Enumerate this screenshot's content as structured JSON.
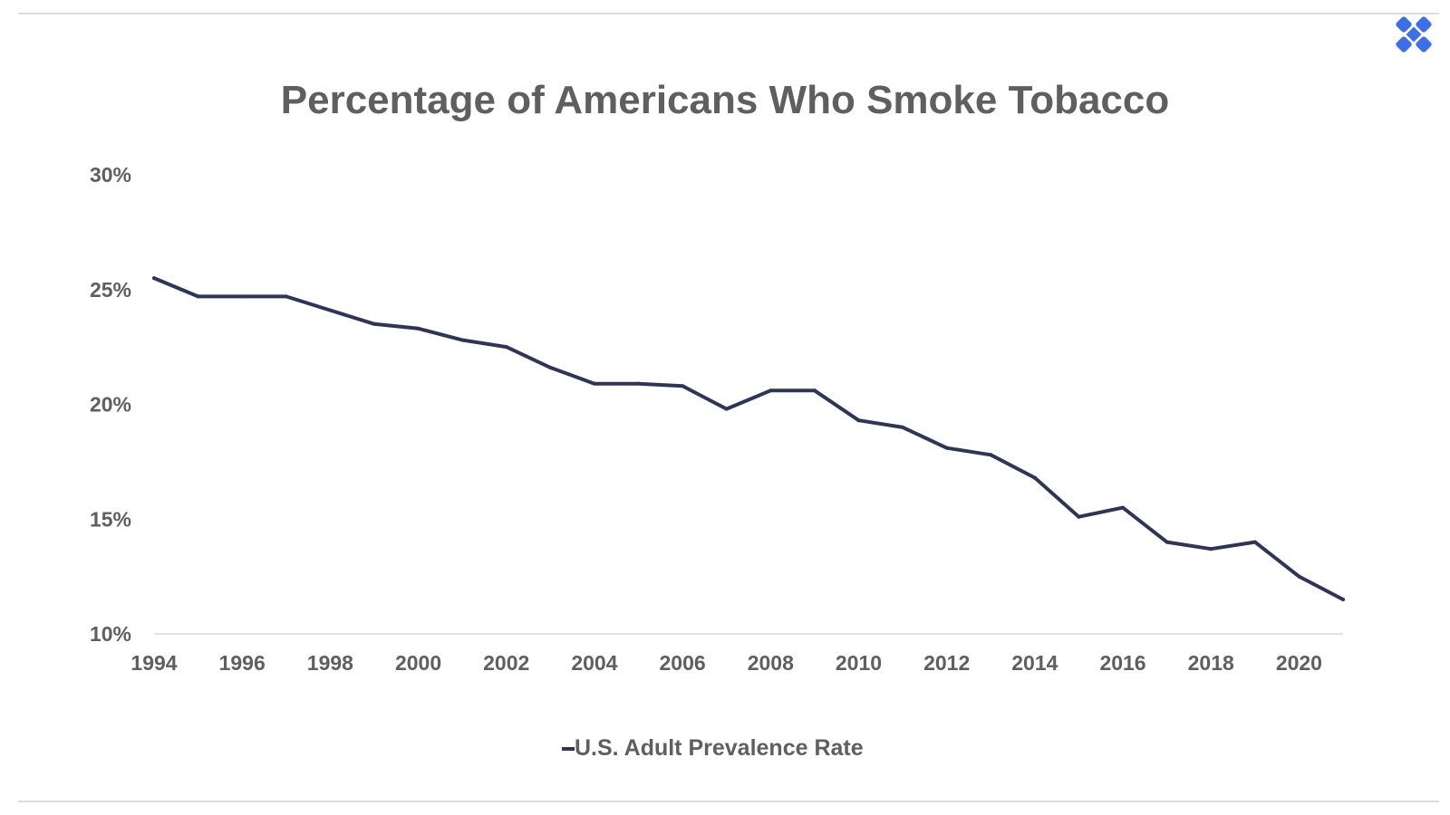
{
  "brand": {
    "logo_icon": "x-cross-logo-icon",
    "logo_color": "#3e6fe8"
  },
  "colors": {
    "line": "#2e3558",
    "text": "#5f5f5f",
    "rule": "#dddddd"
  },
  "chart_data": {
    "type": "line",
    "title": "Percentage of Americans Who Smoke Tobacco",
    "xlabel": "",
    "ylabel": "",
    "x": [
      1994,
      1995,
      1996,
      1997,
      1998,
      1999,
      2000,
      2001,
      2002,
      2003,
      2004,
      2005,
      2006,
      2007,
      2008,
      2009,
      2010,
      2011,
      2012,
      2013,
      2014,
      2015,
      2016,
      2017,
      2018,
      2019,
      2020,
      2021
    ],
    "series": [
      {
        "name": "U.S. Adult Prevalence Rate",
        "values": [
          25.5,
          24.7,
          24.7,
          24.7,
          24.1,
          23.5,
          23.3,
          22.8,
          22.5,
          21.6,
          20.9,
          20.9,
          20.8,
          19.8,
          20.6,
          20.6,
          19.3,
          19.0,
          18.1,
          17.8,
          16.8,
          15.1,
          15.5,
          14.0,
          13.7,
          14.0,
          12.5,
          11.5
        ]
      }
    ],
    "ylim": [
      10,
      30
    ],
    "yticks": [
      10,
      15,
      20,
      25,
      30
    ],
    "ytick_labels": [
      "10%",
      "15%",
      "20%",
      "25%",
      "30%"
    ],
    "xticks": [
      1994,
      1996,
      1998,
      2000,
      2002,
      2004,
      2006,
      2008,
      2010,
      2012,
      2014,
      2016,
      2018,
      2020
    ],
    "xtick_labels": [
      "1994",
      "1996",
      "1998",
      "2000",
      "2002",
      "2004",
      "2006",
      "2008",
      "2010",
      "2012",
      "2014",
      "2016",
      "2018",
      "2020"
    ],
    "xlim": [
      1994,
      2021
    ],
    "grid": false,
    "legend": "bottom-center"
  }
}
